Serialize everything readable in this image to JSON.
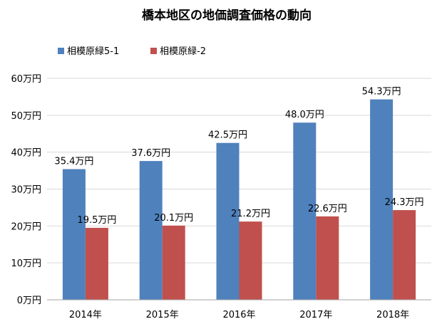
{
  "chart_data": {
    "type": "bar",
    "title": "橋本地区の地価調査価格の動向",
    "xlabel": "",
    "ylabel": "",
    "categories": [
      "2014年",
      "2015年",
      "2016年",
      "2017年",
      "2018年"
    ],
    "series": [
      {
        "name": "相模原緑5-1",
        "color": "#4f81bd",
        "values": [
          35.4,
          37.6,
          42.5,
          48.0,
          54.3
        ],
        "value_labels": [
          "35.4万円",
          "37.6万円",
          "42.5万円",
          "48.0万円",
          "54.3万円"
        ]
      },
      {
        "name": "相模原緑-2",
        "color": "#c0504d",
        "values": [
          19.5,
          20.1,
          21.2,
          22.6,
          24.3
        ],
        "value_labels": [
          "19.5万円",
          "20.1万円",
          "21.2万円",
          "22.6万円",
          "24.3万円"
        ]
      }
    ],
    "ylim": [
      0,
      60
    ],
    "yticks": [
      0,
      10,
      20,
      30,
      40,
      50,
      60
    ],
    "ytick_labels": [
      "0万円",
      "10万円",
      "20万円",
      "30万円",
      "40万円",
      "50万円",
      "60万円"
    ],
    "grid": true,
    "legend_position": "top-left"
  }
}
